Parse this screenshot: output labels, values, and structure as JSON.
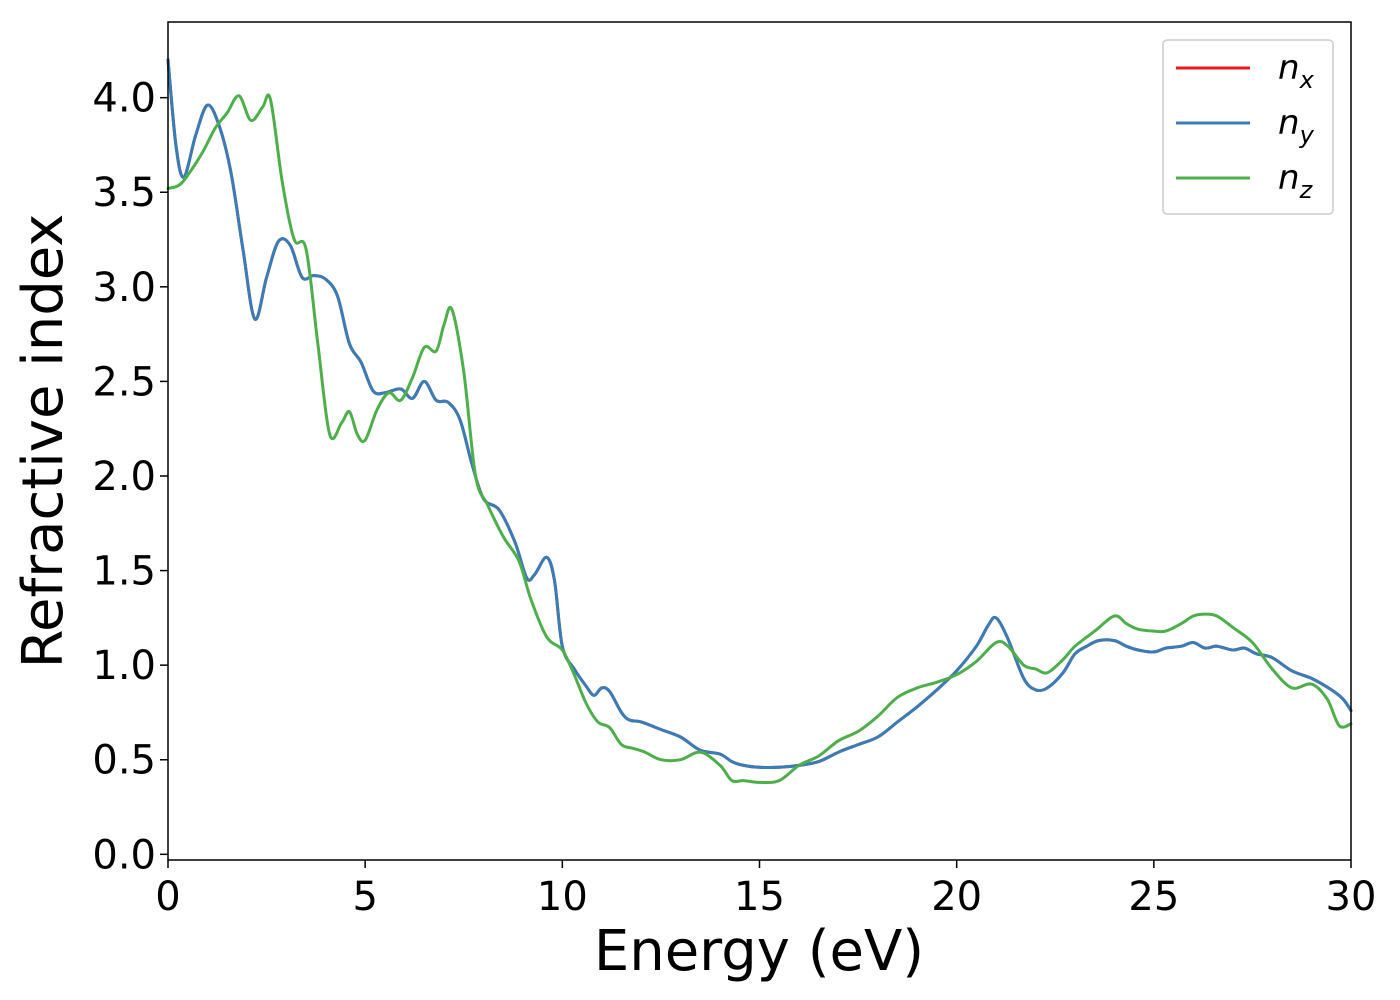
{
  "chart_data": {
    "type": "line",
    "title": "",
    "xlabel": "Energy (eV)",
    "ylabel": "Refractive index",
    "xlim": [
      0,
      30
    ],
    "ylim": [
      -0.03,
      4.4
    ],
    "xticks": [
      0,
      5,
      10,
      15,
      20,
      25,
      30
    ],
    "xtick_labels": [
      "0",
      "5",
      "10",
      "15",
      "20",
      "25",
      "30"
    ],
    "yticks": [
      0.0,
      0.5,
      1.0,
      1.5,
      2.0,
      2.5,
      3.0,
      3.5,
      4.0
    ],
    "ytick_labels": [
      "0.0",
      "0.5",
      "1.0",
      "1.5",
      "2.0",
      "2.5",
      "3.0",
      "3.5",
      "4.0"
    ],
    "grid": false,
    "legend_position": "top-right",
    "series": [
      {
        "name": "n_x",
        "label_base": "n",
        "label_sub": "x",
        "color": "#e41a1c",
        "x": [
          0,
          0.2,
          0.4,
          0.7,
          1.0,
          1.3,
          1.6,
          1.9,
          2.2,
          2.5,
          2.8,
          3.1,
          3.4,
          3.7,
          4.0,
          4.3,
          4.6,
          4.9,
          5.2,
          5.5,
          5.9,
          6.2,
          6.5,
          6.8,
          7.1,
          7.4,
          7.7,
          8.0,
          8.4,
          8.8,
          9.1,
          9.3,
          9.6,
          9.8,
          10.0,
          10.3,
          10.6,
          10.8,
          11.0,
          11.2,
          11.5,
          11.7,
          12.0,
          12.5,
          13.0,
          13.5,
          14.0,
          14.3,
          14.6,
          15.0,
          15.5,
          16.0,
          16.5,
          17.0,
          17.5,
          18.0,
          18.5,
          19.0,
          19.5,
          20.0,
          20.5,
          20.8,
          21.0,
          21.3,
          21.7,
          22.0,
          22.3,
          22.7,
          23.0,
          23.3,
          23.6,
          24.0,
          24.3,
          24.6,
          25.0,
          25.3,
          25.7,
          26.0,
          26.3,
          26.6,
          27.0,
          27.3,
          27.6,
          28.0,
          28.5,
          29.0,
          29.5,
          29.8,
          30.0
        ],
        "y": [
          4.2,
          3.75,
          3.58,
          3.8,
          3.96,
          3.85,
          3.6,
          3.2,
          2.83,
          3.05,
          3.24,
          3.22,
          3.05,
          3.06,
          3.04,
          2.95,
          2.7,
          2.6,
          2.45,
          2.44,
          2.46,
          2.41,
          2.5,
          2.4,
          2.39,
          2.3,
          2.07,
          1.88,
          1.82,
          1.65,
          1.46,
          1.48,
          1.57,
          1.45,
          1.1,
          0.98,
          0.89,
          0.84,
          0.88,
          0.86,
          0.75,
          0.71,
          0.7,
          0.66,
          0.62,
          0.55,
          0.53,
          0.49,
          0.47,
          0.46,
          0.46,
          0.47,
          0.49,
          0.54,
          0.58,
          0.62,
          0.7,
          0.78,
          0.87,
          0.97,
          1.1,
          1.21,
          1.25,
          1.14,
          0.93,
          0.87,
          0.88,
          0.96,
          1.06,
          1.1,
          1.13,
          1.13,
          1.1,
          1.08,
          1.07,
          1.09,
          1.1,
          1.12,
          1.09,
          1.1,
          1.08,
          1.09,
          1.06,
          1.04,
          0.97,
          0.93,
          0.87,
          0.82,
          0.76
        ]
      },
      {
        "name": "n_y",
        "label_base": "n",
        "label_sub": "y",
        "color": "#377eb8",
        "x": [
          0,
          0.2,
          0.4,
          0.7,
          1.0,
          1.3,
          1.6,
          1.9,
          2.2,
          2.5,
          2.8,
          3.1,
          3.4,
          3.7,
          4.0,
          4.3,
          4.6,
          4.9,
          5.2,
          5.5,
          5.9,
          6.2,
          6.5,
          6.8,
          7.1,
          7.4,
          7.7,
          8.0,
          8.4,
          8.8,
          9.1,
          9.3,
          9.6,
          9.8,
          10.0,
          10.3,
          10.6,
          10.8,
          11.0,
          11.2,
          11.5,
          11.7,
          12.0,
          12.5,
          13.0,
          13.5,
          14.0,
          14.3,
          14.6,
          15.0,
          15.5,
          16.0,
          16.5,
          17.0,
          17.5,
          18.0,
          18.5,
          19.0,
          19.5,
          20.0,
          20.5,
          20.8,
          21.0,
          21.3,
          21.7,
          22.0,
          22.3,
          22.7,
          23.0,
          23.3,
          23.6,
          24.0,
          24.3,
          24.6,
          25.0,
          25.3,
          25.7,
          26.0,
          26.3,
          26.6,
          27.0,
          27.3,
          27.6,
          28.0,
          28.5,
          29.0,
          29.5,
          29.8,
          30.0
        ],
        "y": [
          4.2,
          3.75,
          3.58,
          3.8,
          3.96,
          3.85,
          3.6,
          3.2,
          2.83,
          3.05,
          3.24,
          3.22,
          3.05,
          3.06,
          3.04,
          2.95,
          2.7,
          2.6,
          2.45,
          2.44,
          2.46,
          2.41,
          2.5,
          2.4,
          2.39,
          2.3,
          2.07,
          1.88,
          1.82,
          1.65,
          1.46,
          1.48,
          1.57,
          1.45,
          1.1,
          0.98,
          0.89,
          0.84,
          0.88,
          0.86,
          0.75,
          0.71,
          0.7,
          0.66,
          0.62,
          0.55,
          0.53,
          0.49,
          0.47,
          0.46,
          0.46,
          0.47,
          0.49,
          0.54,
          0.58,
          0.62,
          0.7,
          0.78,
          0.87,
          0.97,
          1.1,
          1.21,
          1.25,
          1.14,
          0.93,
          0.87,
          0.88,
          0.96,
          1.06,
          1.1,
          1.13,
          1.13,
          1.1,
          1.08,
          1.07,
          1.09,
          1.1,
          1.12,
          1.09,
          1.1,
          1.08,
          1.09,
          1.06,
          1.04,
          0.97,
          0.93,
          0.87,
          0.82,
          0.76
        ]
      },
      {
        "name": "n_z",
        "label_base": "n",
        "label_sub": "z",
        "color": "#4daf4a",
        "x": [
          0,
          0.3,
          0.6,
          0.9,
          1.2,
          1.5,
          1.8,
          2.1,
          2.4,
          2.6,
          2.9,
          3.2,
          3.5,
          3.8,
          4.1,
          4.4,
          4.6,
          4.8,
          5.0,
          5.3,
          5.6,
          5.9,
          6.2,
          6.5,
          6.8,
          7.0,
          7.2,
          7.5,
          7.8,
          8.1,
          8.5,
          8.9,
          9.2,
          9.6,
          10.0,
          10.3,
          10.6,
          10.9,
          11.2,
          11.5,
          11.8,
          12.1,
          12.5,
          13.0,
          13.5,
          14.0,
          14.3,
          14.6,
          15.0,
          15.5,
          16.0,
          16.5,
          17.0,
          17.5,
          18.0,
          18.5,
          19.0,
          19.5,
          20.0,
          20.5,
          21.0,
          21.3,
          21.7,
          22.0,
          22.3,
          22.7,
          23.0,
          23.5,
          24.0,
          24.3,
          24.6,
          25.0,
          25.3,
          25.7,
          26.0,
          26.3,
          26.6,
          27.0,
          27.5,
          28.0,
          28.5,
          29.0,
          29.4,
          29.7,
          30.0
        ],
        "y": [
          3.52,
          3.54,
          3.62,
          3.72,
          3.84,
          3.92,
          4.01,
          3.88,
          3.95,
          3.99,
          3.55,
          3.25,
          3.2,
          2.7,
          2.22,
          2.28,
          2.34,
          2.22,
          2.19,
          2.35,
          2.44,
          2.4,
          2.52,
          2.68,
          2.66,
          2.8,
          2.88,
          2.55,
          2.0,
          1.85,
          1.68,
          1.55,
          1.35,
          1.15,
          1.08,
          0.95,
          0.8,
          0.7,
          0.67,
          0.58,
          0.56,
          0.54,
          0.5,
          0.5,
          0.54,
          0.47,
          0.39,
          0.39,
          0.38,
          0.39,
          0.47,
          0.52,
          0.6,
          0.65,
          0.73,
          0.83,
          0.88,
          0.91,
          0.95,
          1.02,
          1.12,
          1.1,
          1.0,
          0.98,
          0.96,
          1.03,
          1.1,
          1.18,
          1.26,
          1.22,
          1.19,
          1.18,
          1.18,
          1.22,
          1.26,
          1.27,
          1.26,
          1.2,
          1.12,
          0.98,
          0.88,
          0.9,
          0.82,
          0.68,
          0.69
        ]
      }
    ]
  }
}
